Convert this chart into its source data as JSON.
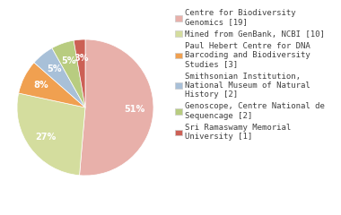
{
  "labels": [
    "Centre for Biodiversity\nGenomics [19]",
    "Mined from GenBank, NCBI [10]",
    "Paul Hebert Centre for DNA\nBarcoding and Biodiversity\nStudies [3]",
    "Smithsonian Institution,\nNational Museum of Natural\nHistory [2]",
    "Genoscope, Centre National de\nSequencage [2]",
    "Sri Ramaswamy Memorial\nUniversity [1]"
  ],
  "values": [
    19,
    10,
    3,
    2,
    2,
    1
  ],
  "colors": [
    "#e8b0aa",
    "#d4dd9e",
    "#f0a050",
    "#a8c0d8",
    "#b8cc80",
    "#cc6055"
  ],
  "background_color": "#ffffff",
  "text_color": "#404040",
  "pct_fontsize": 7.0,
  "legend_fontsize": 6.5
}
